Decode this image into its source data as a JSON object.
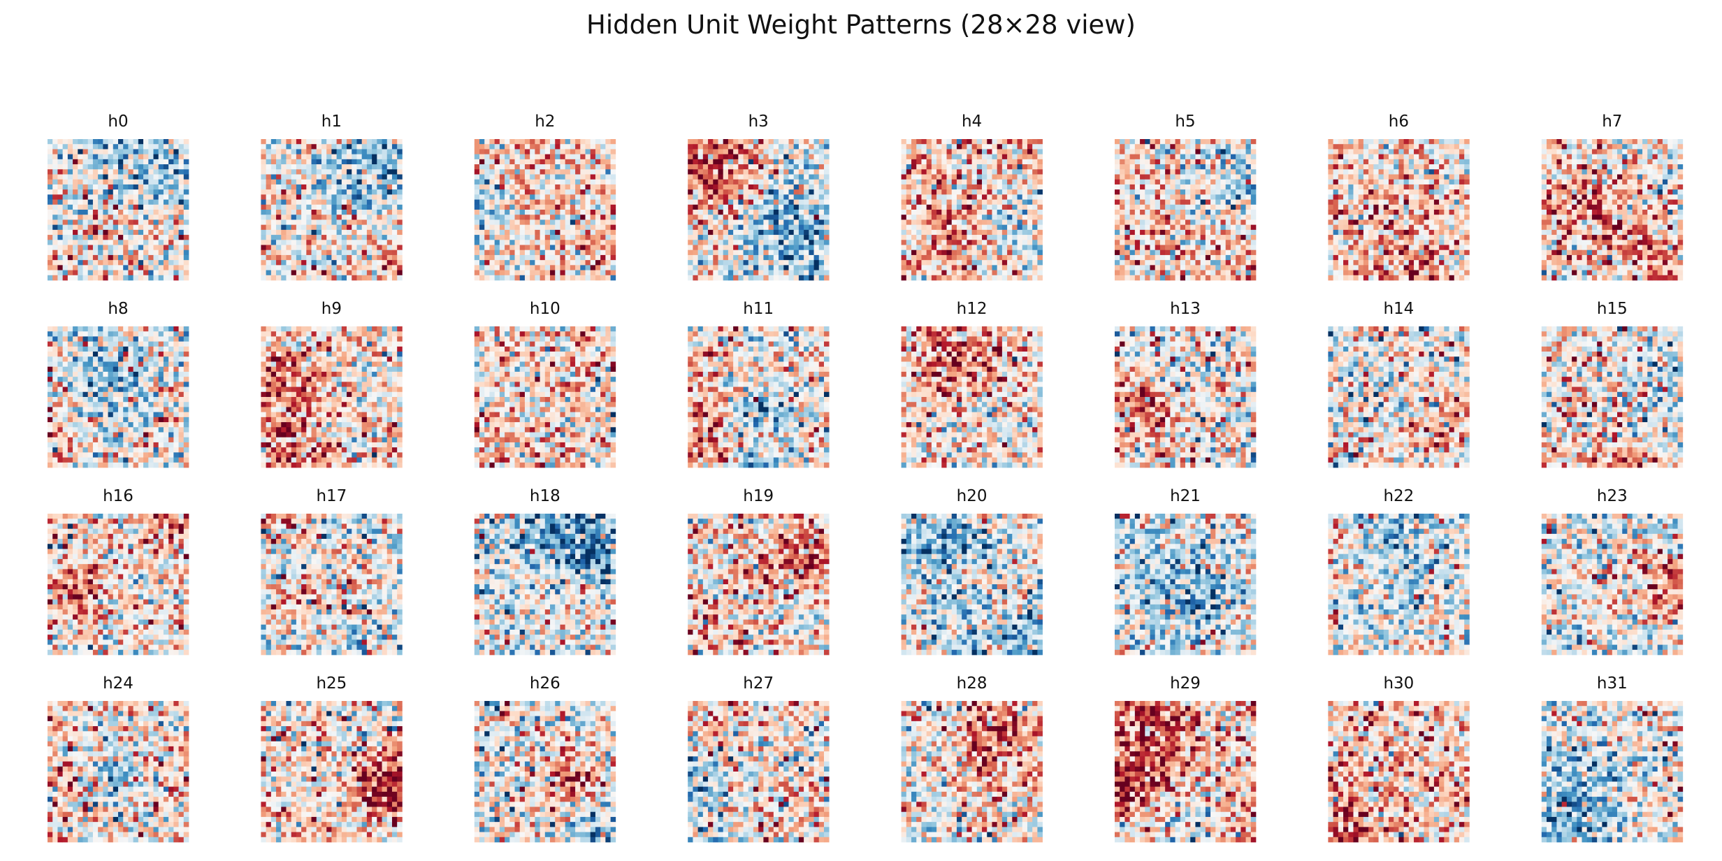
{
  "chart_data": {
    "type": "heatmap",
    "title": "Hidden Unit Weight Patterns (28×28 view)",
    "grid": false,
    "colormap": "RdBu_r",
    "colormap_stops": [
      "#053061",
      "#2166ac",
      "#4393c3",
      "#92c5de",
      "#d1e5f0",
      "#f7f7f7",
      "#fddbc7",
      "#f4a582",
      "#d6604d",
      "#b2182b",
      "#67001f"
    ],
    "value_range": [
      -1,
      1
    ],
    "cells_per_side": 28,
    "layout": {
      "rows": 4,
      "cols": 8
    },
    "panels": [
      {
        "label": "h0",
        "mean": 0.05
      },
      {
        "label": "h1",
        "mean": 0.08
      },
      {
        "label": "h2",
        "mean": 0.12
      },
      {
        "label": "h3",
        "mean": 0.0
      },
      {
        "label": "h4",
        "mean": 0.22
      },
      {
        "label": "h5",
        "mean": 0.18
      },
      {
        "label": "h6",
        "mean": 0.15
      },
      {
        "label": "h7",
        "mean": 0.05
      },
      {
        "label": "h8",
        "mean": 0.0
      },
      {
        "label": "h9",
        "mean": 0.12
      },
      {
        "label": "h10",
        "mean": 0.15
      },
      {
        "label": "h11",
        "mean": 0.1
      },
      {
        "label": "h12",
        "mean": 0.05
      },
      {
        "label": "h13",
        "mean": 0.1
      },
      {
        "label": "h14",
        "mean": 0.0
      },
      {
        "label": "h15",
        "mean": 0.05
      },
      {
        "label": "h16",
        "mean": 0.05
      },
      {
        "label": "h17",
        "mean": -0.12
      },
      {
        "label": "h18",
        "mean": -0.18
      },
      {
        "label": "h19",
        "mean": 0.08
      },
      {
        "label": "h20",
        "mean": 0.02
      },
      {
        "label": "h21",
        "mean": 0.0
      },
      {
        "label": "h22",
        "mean": 0.02
      },
      {
        "label": "h23",
        "mean": -0.1
      },
      {
        "label": "h24",
        "mean": 0.12
      },
      {
        "label": "h25",
        "mean": 0.08
      },
      {
        "label": "h26",
        "mean": -0.02
      },
      {
        "label": "h27",
        "mean": 0.2
      },
      {
        "label": "h28",
        "mean": 0.02
      },
      {
        "label": "h29",
        "mean": 0.25
      },
      {
        "label": "h30",
        "mean": 0.22
      },
      {
        "label": "h31",
        "mean": 0.05
      }
    ]
  }
}
